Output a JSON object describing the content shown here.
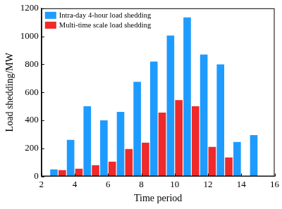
{
  "chart_data": {
    "type": "bar",
    "x_label": "Time period",
    "y_label": "Load shedding/MW",
    "x": [
      3,
      4,
      5,
      6,
      7,
      8,
      9,
      10,
      11,
      12,
      13,
      14,
      15
    ],
    "series": [
      {
        "name": "Intra-day 4-hour load shedding",
        "color": "#1e9bff",
        "values": [
          50,
          260,
          500,
          400,
          460,
          675,
          820,
          1005,
          1135,
          870,
          800,
          245,
          295
        ]
      },
      {
        "name": "Multi-time scale load shedding",
        "color": "#ee2a2a",
        "values": [
          45,
          55,
          80,
          105,
          195,
          240,
          455,
          545,
          500,
          210,
          135,
          0,
          0
        ]
      }
    ],
    "xlim": [
      2,
      16
    ],
    "xticks": [
      2,
      4,
      6,
      8,
      10,
      12,
      14,
      16
    ],
    "ylim": [
      0,
      1200
    ],
    "yticks": [
      0,
      200,
      400,
      600,
      800,
      1000,
      1200
    ],
    "grid": false,
    "legend": "top-left"
  }
}
